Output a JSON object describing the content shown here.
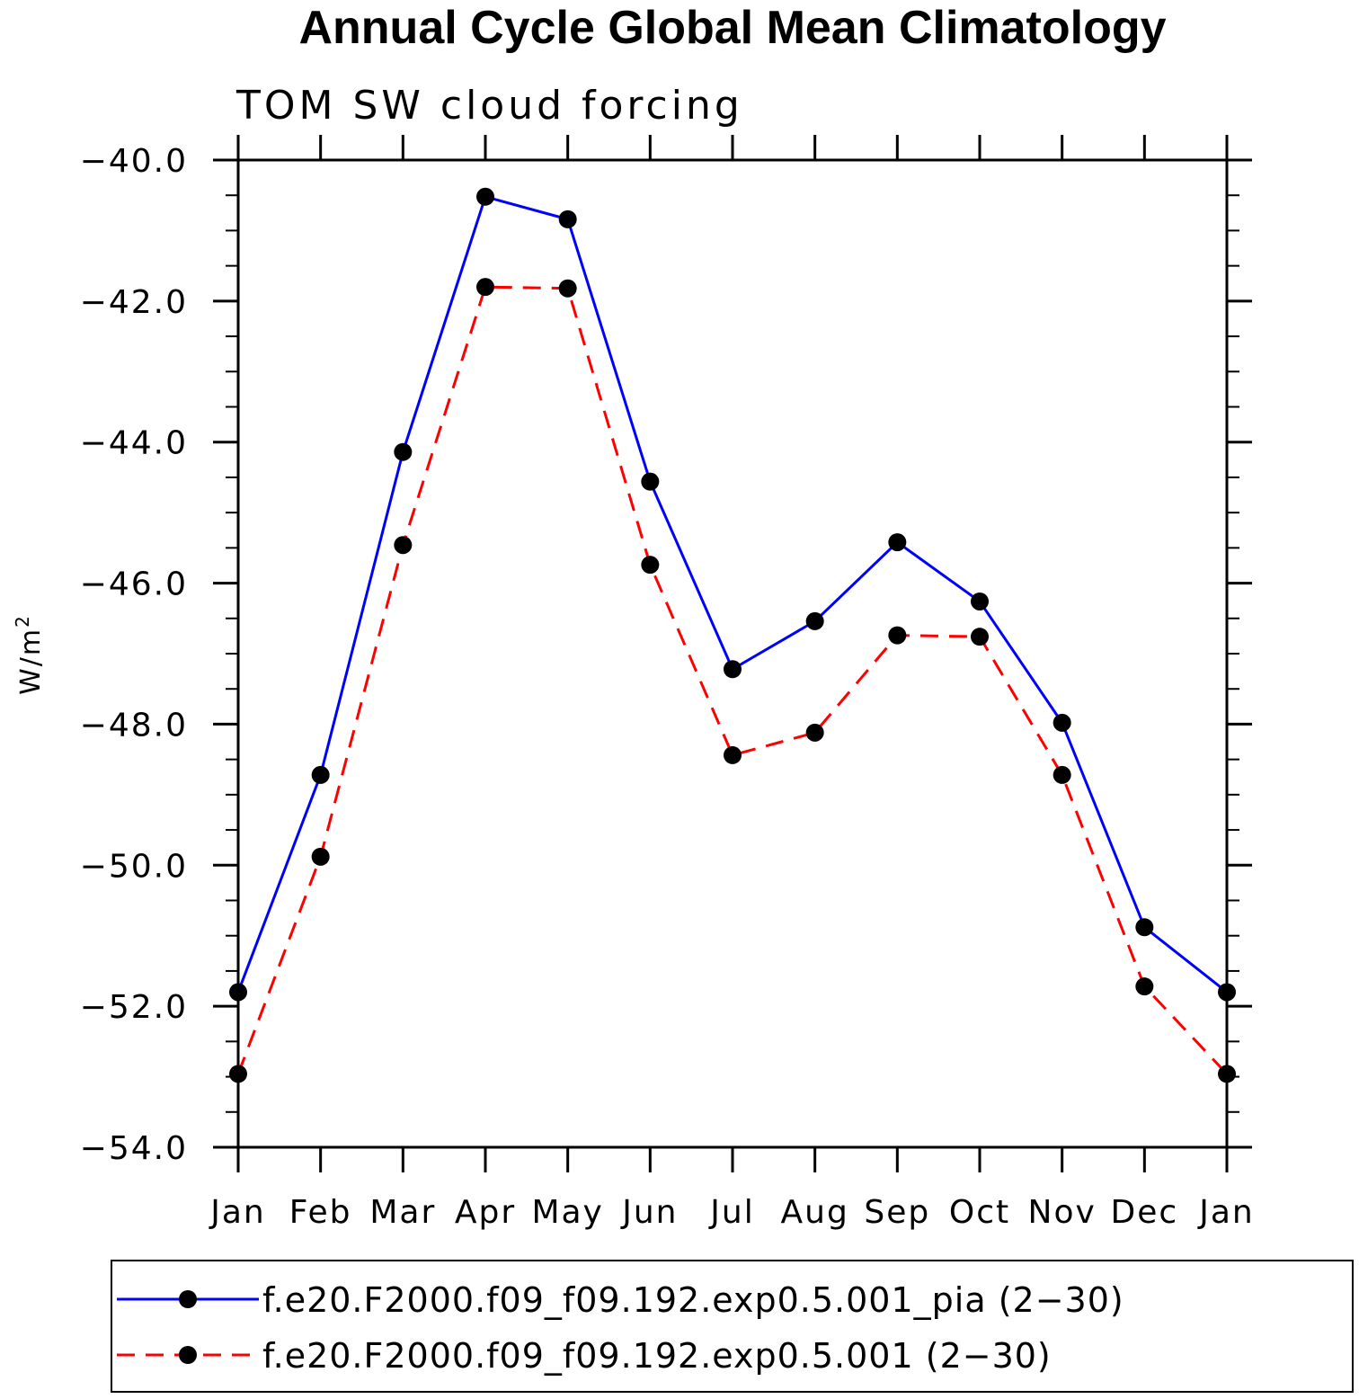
{
  "chart_data": {
    "type": "line",
    "title": "Annual Cycle Global Mean Climatology",
    "subtitle": "TOM SW cloud forcing",
    "ylabel": "W/m",
    "ylabel_superscript": "2",
    "xlabel": "",
    "categories": [
      "Jan",
      "Feb",
      "Mar",
      "Apr",
      "May",
      "Jun",
      "Jul",
      "Aug",
      "Sep",
      "Oct",
      "Nov",
      "Dec",
      "Jan"
    ],
    "ylim": [
      -54.0,
      -40.0
    ],
    "yticks": [
      "-40.0",
      "-42.0",
      "-44.0",
      "-46.0",
      "-48.0",
      "-50.0",
      "-52.0",
      "-54.0"
    ],
    "ytick_values": [
      -40,
      -42,
      -44,
      -46,
      -48,
      -50,
      -52,
      -54
    ],
    "series": [
      {
        "name": "f.e20.F2000.f09_f09.192.exp0.5.001_pia (2−30)",
        "color": "#0000ff",
        "dash": "solid",
        "values": [
          -51.8,
          -48.72,
          -44.14,
          -40.52,
          -40.84,
          -44.56,
          -47.22,
          -46.54,
          -45.42,
          -46.26,
          -47.98,
          -50.88,
          -51.8
        ]
      },
      {
        "name": "f.e20.F2000.f09_f09.192.exp0.5.001 (2−30)",
        "color": "#ff0000",
        "dash": "dashed",
        "values": [
          -52.96,
          -49.88,
          -45.46,
          -41.8,
          -41.82,
          -45.74,
          -48.44,
          -48.12,
          -46.74,
          -46.76,
          -48.72,
          -51.72,
          -52.96
        ]
      }
    ],
    "grid": false,
    "legend": "bottom"
  }
}
